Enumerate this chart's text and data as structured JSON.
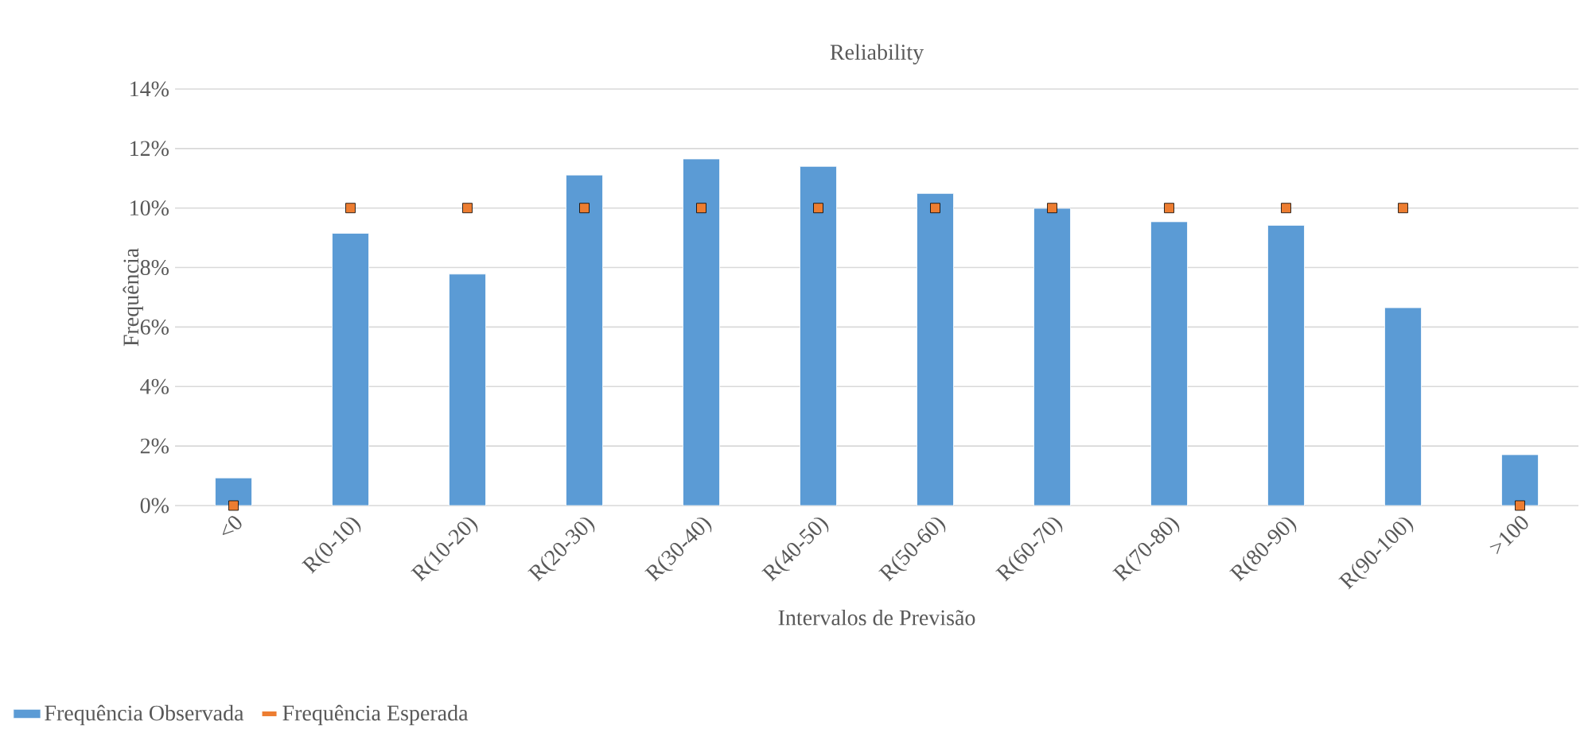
{
  "chart_data": {
    "type": "bar",
    "title": "Reliability",
    "xlabel": "Intervalos de Previsão",
    "ylabel": "Frequência",
    "categories": [
      "<0",
      "R(0-10)",
      "R(10-20)",
      "R(20-30)",
      "R(30-40)",
      "R(40-50)",
      "R(50-60)",
      "R(60-70)",
      "R(70-80)",
      "R(80-90)",
      "R(90-100)",
      ">100"
    ],
    "series": [
      {
        "name": "Frequência Observada",
        "color": "#5b9bd5",
        "values": [
          0.93,
          9.15,
          7.78,
          11.11,
          11.65,
          11.4,
          10.49,
          9.99,
          9.54,
          9.42,
          6.65,
          1.71
        ]
      },
      {
        "name": "Frequência Esperada",
        "type": "scatter",
        "color": "#ed7d31",
        "values": [
          0,
          10,
          10,
          10,
          10,
          10,
          10,
          10,
          10,
          10,
          10,
          0
        ]
      }
    ],
    "ylim": [
      0,
      14
    ],
    "yticks": [
      {
        "value": 0,
        "label": "0%"
      },
      {
        "value": 2,
        "label": "2%"
      },
      {
        "value": 4,
        "label": "4%"
      },
      {
        "value": 6,
        "label": "6%"
      },
      {
        "value": 8,
        "label": "8%"
      },
      {
        "value": 10,
        "label": "10%"
      },
      {
        "value": 12,
        "label": "12%"
      },
      {
        "value": 14,
        "label": "14%"
      }
    ],
    "grid": "y",
    "legend": "bottom"
  }
}
